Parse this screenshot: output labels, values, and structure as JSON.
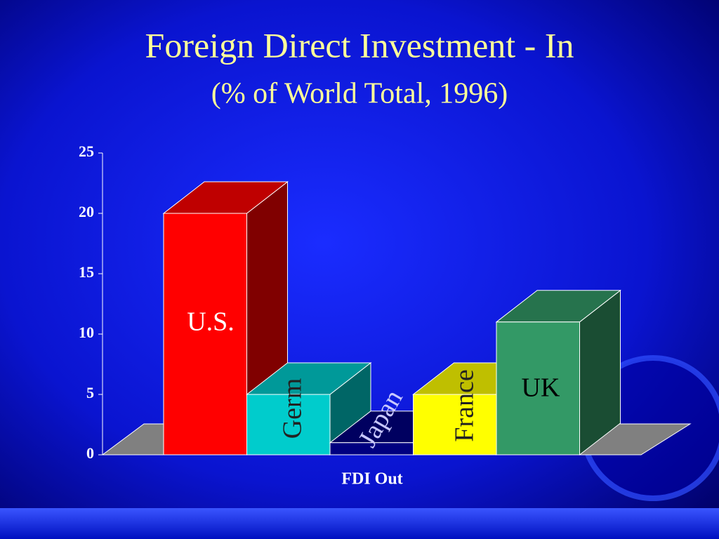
{
  "chart_data": {
    "type": "bar3d",
    "title": "Foreign Direct Investment - In",
    "subtitle": "(% of World Total, 1996)",
    "x_label": "FDI Out",
    "categories": [
      "U.S.",
      "Germ",
      "Japan",
      "France",
      "UK"
    ],
    "values": [
      20,
      5,
      1,
      5,
      11
    ],
    "colors": [
      "#ff0000",
      "#00cccc",
      "#000080",
      "#ffff00",
      "#339966"
    ],
    "label_colors": [
      "#ffffff",
      "#222222",
      "#c8c8ff",
      "#222222",
      "#000000"
    ],
    "ylim": [
      0,
      25
    ],
    "yticks": [
      0,
      5,
      10,
      15,
      20,
      25
    ]
  }
}
